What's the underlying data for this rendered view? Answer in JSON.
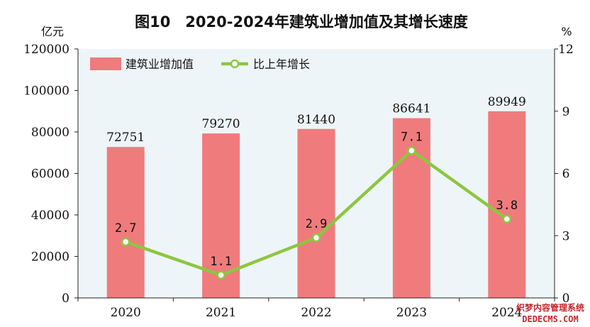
{
  "chart_data": {
    "type": "bar+line",
    "title": "图10　2020-2024年建筑业增加值及其增长速度",
    "y_left_unit": "亿元",
    "y_right_unit": "%",
    "categories": [
      "2020",
      "2021",
      "2022",
      "2023",
      "2024"
    ],
    "series": [
      {
        "name": "建筑业增加值",
        "type": "bar",
        "axis": "left",
        "values": [
          72751,
          79270,
          81440,
          86641,
          89949
        ],
        "color": "#f07b7c"
      },
      {
        "name": "比上年增长",
        "type": "line",
        "axis": "right",
        "values": [
          2.7,
          1.1,
          2.9,
          7.1,
          3.8
        ],
        "color": "#8dc641"
      }
    ],
    "point_labels": [
      "2.7",
      "1.1",
      "2.9",
      "7.1",
      "3.8"
    ],
    "ylim_left": [
      0,
      120000
    ],
    "yticks_left": [
      "0",
      "20000",
      "40000",
      "60000",
      "80000",
      "100000",
      "120000"
    ],
    "ylim_right": [
      0,
      12
    ],
    "yticks_right": [
      "0",
      "3",
      "6",
      "9",
      "12"
    ],
    "plot_background": "#eef5f8",
    "grid": false,
    "legend_position": "top-left"
  },
  "watermark": {
    "line1": "织梦内容管理系统",
    "line2": "DEDECMS.COM"
  }
}
